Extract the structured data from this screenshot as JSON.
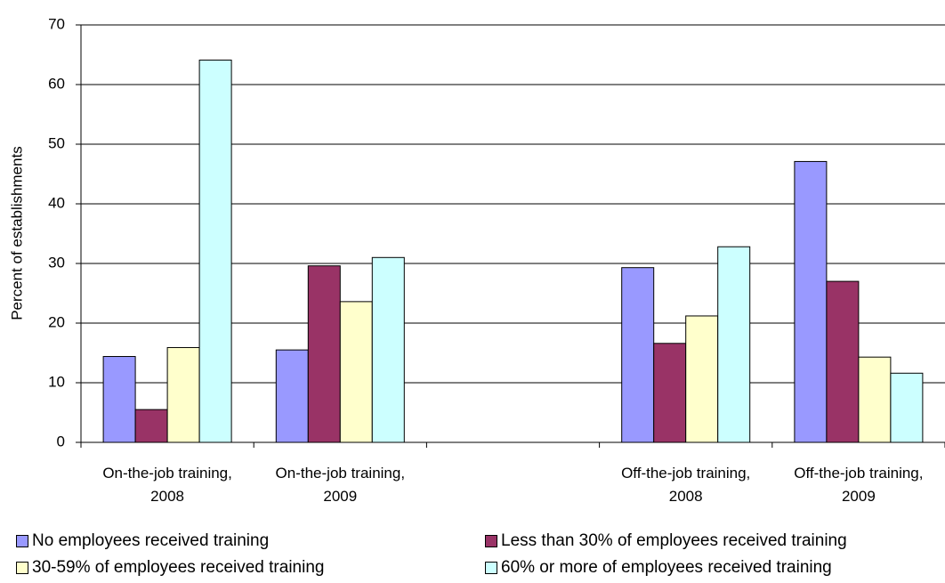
{
  "chart_data": {
    "type": "bar",
    "y_label": "Percent of establishments",
    "categories": [
      "On-the-job training, 2008",
      "On-the-job training, 2009",
      null,
      "Off-the-job training, 2008",
      "Off-the-job training, 2009"
    ],
    "series": [
      {
        "name": "No employees received training",
        "color": "#9999ff",
        "values": [
          14.4,
          15.5,
          null,
          29.3,
          47.1
        ]
      },
      {
        "name": "Less than 30% of employees received training",
        "color": "#993366",
        "values": [
          5.5,
          29.6,
          null,
          16.6,
          27.0
        ]
      },
      {
        "name": "30-59% of employees received training",
        "color": "#ffffcc",
        "values": [
          15.9,
          23.6,
          null,
          21.2,
          14.3
        ]
      },
      {
        "name": "60% or more of employees received training",
        "color": "#ccffff",
        "values": [
          64.1,
          31.0,
          null,
          32.8,
          11.6
        ]
      }
    ],
    "ylim": [
      0,
      70
    ],
    "yticks": [
      0,
      10,
      20,
      30,
      40,
      50,
      60,
      70
    ],
    "grid": true
  }
}
